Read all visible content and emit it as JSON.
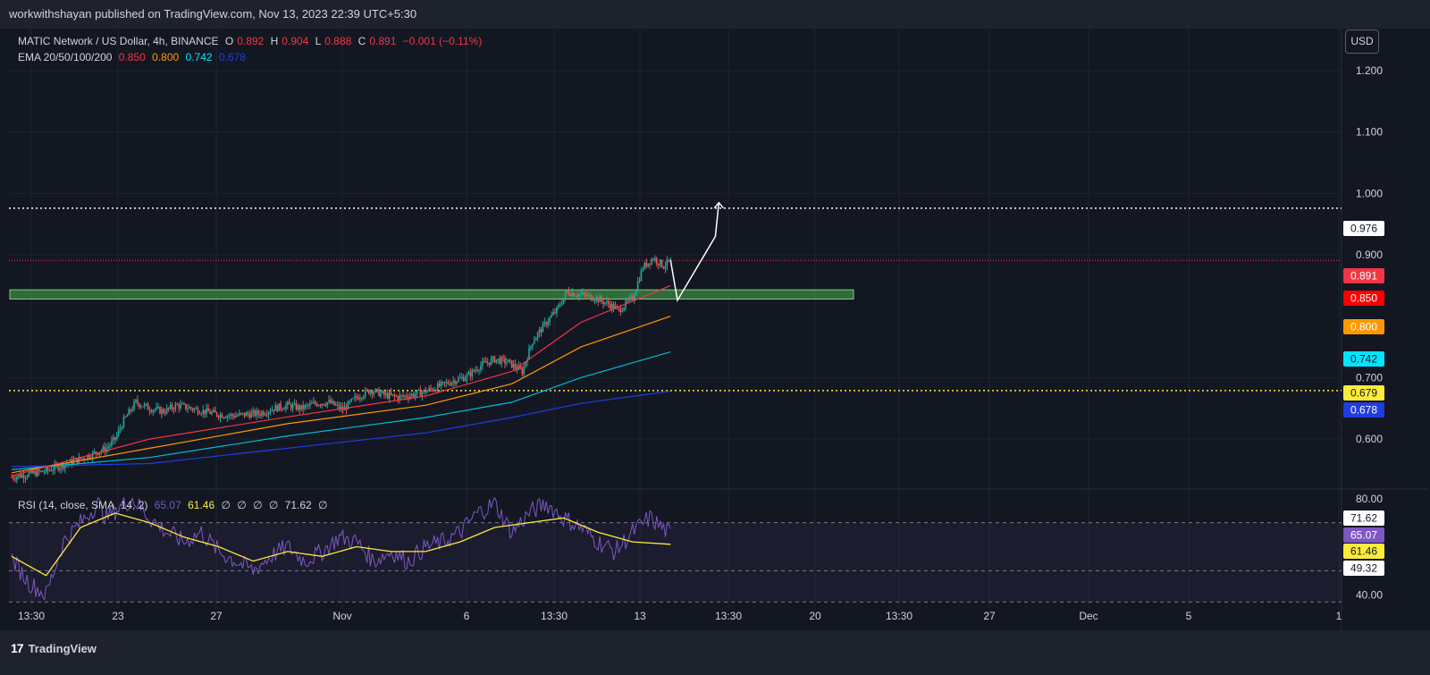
{
  "header": {
    "publisher_line": "workwithshayan published on TradingView.com, Nov 13, 2023 22:39 UTC+5:30"
  },
  "footer": {
    "brand": "TradingView",
    "logo_mark": "17"
  },
  "usd_button": "USD",
  "legend": {
    "symbol": "MATIC Network / US Dollar, 4h, BINANCE",
    "o_label": "O",
    "o": "0.892",
    "h_label": "H",
    "h": "0.904",
    "l_label": "L",
    "l": "0.888",
    "c_label": "C",
    "c": "0.891",
    "change": "−0.001 (−0.11%)",
    "ema_label": "EMA 20/50/100/200",
    "ema20": "0.850",
    "ema50": "0.800",
    "ema100": "0.742",
    "ema200": "0.678"
  },
  "rsi_legend": {
    "label": "RSI (14, close, SMA, 14, 2)",
    "v1": "65.07",
    "v2": "61.46",
    "z1": "∅",
    "z2": "∅",
    "z3": "∅",
    "z4": "∅",
    "v3": "71.62",
    "z5": "∅"
  },
  "colors": {
    "background": "#131722",
    "up": "#26a69a",
    "down": "#ef5350",
    "ema20": "#f23645",
    "ema50": "#ff9800",
    "ema100": "#00bcd4",
    "ema200": "#1f3de0",
    "rsi": "#7e57c2",
    "rsi_ma": "#ffeb3b",
    "zone": "#4caf50"
  },
  "chart_data": [
    {
      "type": "candlestick",
      "title": "MATIC Network / US Dollar, 4h, BINANCE",
      "y_axis": {
        "ticks": [
          "1.200",
          "1.100",
          "1.000",
          "0.900",
          "0.700",
          "0.600"
        ],
        "range": [
          0.52,
          1.27
        ]
      },
      "x_axis": {
        "ticks": [
          "13:30",
          "23",
          "27",
          "Nov",
          "6",
          "13:30",
          "13",
          "13:30",
          "20",
          "13:30",
          "27",
          "Dec",
          "5",
          "1"
        ]
      },
      "price_tags": [
        {
          "value": "0.976",
          "bg": "#ffffff",
          "fg": "#131722"
        },
        {
          "value": "0.891",
          "bg": "#f23645",
          "fg": "#ffffff"
        },
        {
          "value": "0.850",
          "bg": "#ff0000",
          "fg": "#ffffff"
        },
        {
          "value": "0.800",
          "bg": "#ff9800",
          "fg": "#ffffff"
        },
        {
          "value": "0.742",
          "bg": "#00e5ff",
          "fg": "#131722"
        },
        {
          "value": "0.679",
          "bg": "#ffeb3b",
          "fg": "#131722"
        },
        {
          "value": "0.678",
          "bg": "#1f3de0",
          "fg": "#ffffff"
        }
      ],
      "levels": {
        "resistance_dotted": 0.976,
        "support_dotted": 0.679,
        "last_price": 0.891
      },
      "zone": {
        "low": 0.828,
        "high": 0.843
      },
      "close_path": [
        [
          0,
          0.538
        ],
        [
          20,
          0.548
        ],
        [
          40,
          0.568
        ],
        [
          55,
          0.585
        ],
        [
          60,
          0.6
        ],
        [
          65,
          0.63
        ],
        [
          72,
          0.66
        ],
        [
          80,
          0.65
        ],
        [
          88,
          0.645
        ],
        [
          96,
          0.655
        ],
        [
          104,
          0.65
        ],
        [
          112,
          0.645
        ],
        [
          120,
          0.64
        ],
        [
          128,
          0.638
        ],
        [
          136,
          0.64
        ],
        [
          144,
          0.642
        ],
        [
          152,
          0.65
        ],
        [
          160,
          0.655
        ],
        [
          168,
          0.65
        ],
        [
          176,
          0.658
        ],
        [
          184,
          0.66
        ],
        [
          192,
          0.648
        ],
        [
          200,
          0.668
        ],
        [
          208,
          0.68
        ],
        [
          216,
          0.672
        ],
        [
          224,
          0.668
        ],
        [
          232,
          0.672
        ],
        [
          240,
          0.678
        ],
        [
          248,
          0.686
        ],
        [
          256,
          0.695
        ],
        [
          264,
          0.702
        ],
        [
          272,
          0.72
        ],
        [
          280,
          0.73
        ],
        [
          288,
          0.725
        ],
        [
          296,
          0.71
        ],
        [
          302,
          0.76
        ],
        [
          310,
          0.79
        ],
        [
          316,
          0.81
        ],
        [
          322,
          0.84
        ],
        [
          330,
          0.835
        ],
        [
          338,
          0.83
        ],
        [
          346,
          0.82
        ],
        [
          352,
          0.81
        ],
        [
          360,
          0.83
        ],
        [
          366,
          0.88
        ],
        [
          372,
          0.895
        ],
        [
          378,
          0.882
        ],
        [
          382,
          0.891
        ]
      ],
      "ema20": [
        [
          0,
          0.54
        ],
        [
          80,
          0.6
        ],
        [
          160,
          0.636
        ],
        [
          240,
          0.67
        ],
        [
          290,
          0.71
        ],
        [
          330,
          0.79
        ],
        [
          382,
          0.85
        ]
      ],
      "ema50": [
        [
          0,
          0.545
        ],
        [
          80,
          0.585
        ],
        [
          160,
          0.625
        ],
        [
          240,
          0.655
        ],
        [
          290,
          0.69
        ],
        [
          330,
          0.75
        ],
        [
          382,
          0.8
        ]
      ],
      "ema100": [
        [
          0,
          0.55
        ],
        [
          80,
          0.57
        ],
        [
          160,
          0.605
        ],
        [
          240,
          0.635
        ],
        [
          290,
          0.66
        ],
        [
          330,
          0.7
        ],
        [
          382,
          0.742
        ]
      ],
      "ema200": [
        [
          0,
          0.555
        ],
        [
          80,
          0.56
        ],
        [
          160,
          0.585
        ],
        [
          240,
          0.61
        ],
        [
          290,
          0.635
        ],
        [
          330,
          0.658
        ],
        [
          382,
          0.678
        ]
      ],
      "projection": [
        [
          382,
          0.891
        ],
        [
          386,
          0.826
        ],
        [
          408,
          0.93
        ],
        [
          410,
          0.985
        ]
      ]
    },
    {
      "type": "line",
      "title": "RSI (14, close, SMA, 14, 2)",
      "y_axis": {
        "ticks": [
          "80.00",
          "40.00"
        ],
        "range": [
          36,
          84
        ],
        "bands": [
          30,
          70
        ]
      },
      "price_tags": [
        {
          "value": "71.62",
          "bg": "#ffffff",
          "fg": "#131722"
        },
        {
          "value": "65.07",
          "bg": "#7e57c2",
          "fg": "#ffffff"
        },
        {
          "value": "61.46",
          "bg": "#ffeb3b",
          "fg": "#131722"
        },
        {
          "value": "49.32",
          "bg": "#ffffff",
          "fg": "#131722"
        }
      ],
      "rsi": [
        [
          0,
          55
        ],
        [
          10,
          45
        ],
        [
          20,
          40
        ],
        [
          30,
          62
        ],
        [
          40,
          70
        ],
        [
          50,
          78
        ],
        [
          55,
          72
        ],
        [
          60,
          75
        ],
        [
          70,
          80
        ],
        [
          80,
          72
        ],
        [
          90,
          66
        ],
        [
          100,
          62
        ],
        [
          110,
          66
        ],
        [
          120,
          58
        ],
        [
          130,
          54
        ],
        [
          140,
          50
        ],
        [
          150,
          56
        ],
        [
          160,
          60
        ],
        [
          170,
          54
        ],
        [
          180,
          58
        ],
        [
          190,
          64
        ],
        [
          200,
          62
        ],
        [
          210,
          54
        ],
        [
          220,
          58
        ],
        [
          230,
          54
        ],
        [
          240,
          60
        ],
        [
          250,
          62
        ],
        [
          260,
          66
        ],
        [
          270,
          74
        ],
        [
          280,
          78
        ],
        [
          290,
          66
        ],
        [
          300,
          74
        ],
        [
          310,
          78
        ],
        [
          320,
          72
        ],
        [
          330,
          68
        ],
        [
          340,
          62
        ],
        [
          350,
          58
        ],
        [
          360,
          66
        ],
        [
          370,
          72
        ],
        [
          382,
          65
        ]
      ],
      "rsi_ma": [
        [
          0,
          56
        ],
        [
          20,
          48
        ],
        [
          40,
          68
        ],
        [
          60,
          74
        ],
        [
          80,
          70
        ],
        [
          100,
          64
        ],
        [
          120,
          60
        ],
        [
          140,
          54
        ],
        [
          160,
          58
        ],
        [
          180,
          56
        ],
        [
          200,
          60
        ],
        [
          220,
          58
        ],
        [
          240,
          58
        ],
        [
          260,
          62
        ],
        [
          280,
          68
        ],
        [
          300,
          70
        ],
        [
          320,
          72
        ],
        [
          340,
          66
        ],
        [
          360,
          62
        ],
        [
          382,
          61
        ]
      ]
    }
  ]
}
